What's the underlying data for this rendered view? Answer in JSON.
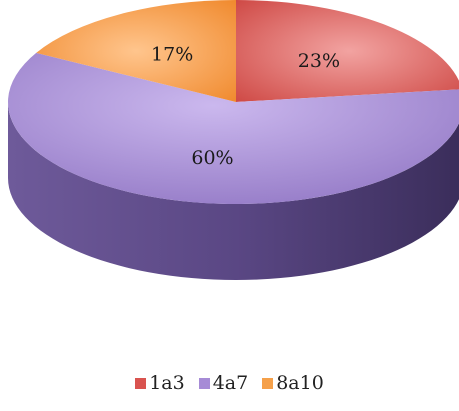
{
  "chart_data": {
    "type": "pie",
    "style": "3d",
    "title": "",
    "slices": [
      {
        "label": "1a3",
        "value": 23,
        "value_label": "23%",
        "color": "#d9534f"
      },
      {
        "label": "4a7",
        "value": 60,
        "value_label": "60%",
        "color": "#a68bd6"
      },
      {
        "label": "8a10",
        "value": 17,
        "value_label": "17%",
        "color": "#f5a04a"
      }
    ],
    "legend_position": "bottom"
  }
}
